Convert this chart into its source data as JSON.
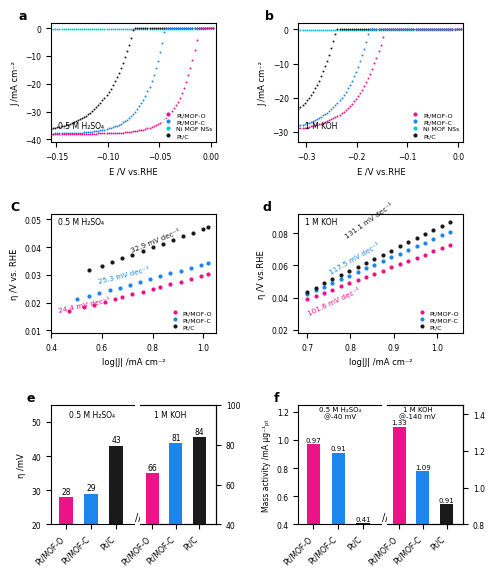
{
  "colors": {
    "pink": "#EE1289",
    "blue": "#1C86EE",
    "cyan": "#00CED1",
    "black": "#1a1a1a"
  },
  "panel_a": {
    "title": "a",
    "xlabel": "E /V vs.RHE",
    "ylabel": "J /mA cm⁻²",
    "annotation": "0.5 M H₂SO₄",
    "xlim": [
      -0.155,
      0.005
    ],
    "ylim": [
      -41,
      2
    ],
    "xticks": [
      -0.15,
      -0.1,
      -0.05,
      0.0
    ],
    "yticks": [
      -40,
      -30,
      -20,
      -10,
      0
    ]
  },
  "panel_b": {
    "title": "b",
    "xlabel": "E /V vs.RHE",
    "ylabel": "J /mA cm⁻²",
    "annotation": "1 M KOH",
    "xlim": [
      -0.315,
      0.01
    ],
    "ylim": [
      -33,
      2
    ],
    "xticks": [
      -0.3,
      -0.2,
      -0.1,
      0.0
    ],
    "yticks": [
      -30,
      -20,
      -10,
      0
    ]
  },
  "panel_c": {
    "title": "C",
    "xlabel": "log|J| /mA cm⁻²",
    "ylabel": "η /V vs. RHE",
    "annotation": "0.5 M H₂SO₄",
    "xlim": [
      0.4,
      1.05
    ],
    "ylim": [
      0.009,
      0.052
    ],
    "xticks": [
      0.4,
      0.6,
      0.8,
      1.0
    ],
    "yticks": [
      0.01,
      0.02,
      0.03,
      0.04,
      0.05
    ],
    "slope_pink": "24.4 mV dec⁻¹",
    "slope_blue": "25.3 mV dec⁻¹",
    "slope_black": "32.9 mV dec⁻¹",
    "pink_logJ": [
      0.47,
      0.53,
      0.57,
      0.61,
      0.65,
      0.68,
      0.72,
      0.76,
      0.8,
      0.83,
      0.87,
      0.91,
      0.95,
      0.99,
      1.02
    ],
    "pink_intercept": 0.0054,
    "pink_slope": 0.0244,
    "blue_logJ": [
      0.5,
      0.55,
      0.59,
      0.63,
      0.67,
      0.71,
      0.75,
      0.79,
      0.83,
      0.87,
      0.91,
      0.95,
      0.99,
      1.02
    ],
    "blue_intercept": 0.0085,
    "blue_slope": 0.0253,
    "black_logJ": [
      0.55,
      0.6,
      0.64,
      0.68,
      0.72,
      0.76,
      0.8,
      0.84,
      0.88,
      0.92,
      0.96,
      1.0,
      1.02
    ],
    "black_intercept": 0.0136,
    "black_slope": 0.0329
  },
  "panel_d": {
    "title": "d",
    "xlabel": "log|J| /mA cm⁻²",
    "ylabel": "η /V vs.RHE",
    "annotation": "1 M KOH",
    "xlim": [
      0.68,
      1.06
    ],
    "ylim": [
      0.018,
      0.092
    ],
    "xticks": [
      0.7,
      0.8,
      0.9,
      1.0
    ],
    "yticks": [
      0.02,
      0.04,
      0.06,
      0.08
    ],
    "slope_pink": "101.6 mV dec⁻¹",
    "slope_blue": "117.5 mV dec⁻¹",
    "slope_black": "131.1 mV dec⁻¹",
    "pink_slope": 0.1016,
    "pink_intercept": -0.032,
    "blue_slope": 0.1175,
    "blue_intercept": -0.04,
    "black_slope": 0.1311,
    "black_intercept": -0.048
  },
  "panel_e": {
    "title": "e",
    "ylabel_left": "η /mV",
    "annotation_left": "0.5 M H₂SO₄",
    "annotation_right": "1 M KOH",
    "ylim_left": [
      20,
      55
    ],
    "ylim_right": [
      40,
      100
    ],
    "yticks_left": [
      20,
      30,
      40,
      50
    ],
    "yticks_right": [
      40,
      60,
      80,
      100
    ],
    "bars_left": [
      {
        "label": "Pt/MOF-O",
        "val": 28,
        "color": "#EE1289"
      },
      {
        "label": "Pt/MOF-C",
        "val": 29,
        "color": "#1C86EE"
      },
      {
        "label": "Pt/C",
        "val": 43,
        "color": "#1a1a1a"
      }
    ],
    "bars_right": [
      {
        "label": "Pt/MOF-O",
        "val": 66,
        "color": "#EE1289"
      },
      {
        "label": "Pt/MOF-C",
        "val": 81,
        "color": "#1C86EE"
      },
      {
        "label": "Pt/C",
        "val": 84,
        "color": "#1a1a1a"
      }
    ]
  },
  "panel_f": {
    "title": "f",
    "ylabel_left": "Mass activity /mA μg⁻¹ₚₜ",
    "annotation_left": "0.5 M H₂SO₄\n@-40 mV",
    "annotation_right": "1 M KOH\n@-140 mV",
    "ylim_left": [
      0.4,
      1.25
    ],
    "ylim_right": [
      0.8,
      1.45
    ],
    "yticks_left": [
      0.4,
      0.6,
      0.8,
      1.0,
      1.2
    ],
    "yticks_right": [
      0.8,
      1.0,
      1.2,
      1.4
    ],
    "bars_left": [
      {
        "label": "Pt/MOF-O",
        "val": 0.97,
        "color": "#EE1289"
      },
      {
        "label": "Pt/MOF-C",
        "val": 0.91,
        "color": "#1C86EE"
      },
      {
        "label": "Pt/C",
        "val": 0.41,
        "color": "#1a1a1a"
      }
    ],
    "bars_right": [
      {
        "label": "Pt/MOF-O",
        "val": 1.33,
        "color": "#EE1289"
      },
      {
        "label": "Pt/MOF-C",
        "val": 1.09,
        "color": "#1C86EE"
      },
      {
        "label": "Pt/C",
        "val": 0.91,
        "color": "#1a1a1a"
      }
    ]
  }
}
